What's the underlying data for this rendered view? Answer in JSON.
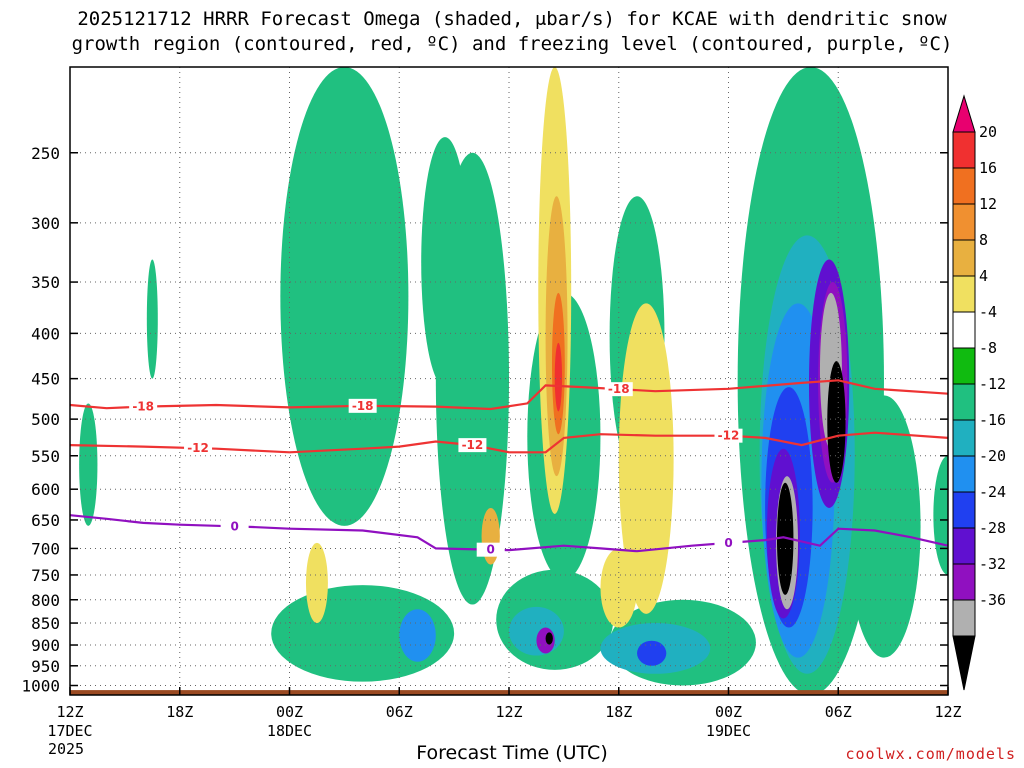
{
  "chart_data": {
    "type": "contour-heatmap",
    "title_line1": "2025121712 HRRR Forecast Omega (shaded, μbar/s) for KCAE with dendritic snow",
    "title_line2": "growth region (contoured, red, ºC) and freezing level (contoured, purple, ºC)",
    "xlabel": "Forecast Time (UTC)",
    "ylabel": "",
    "source": "coolwx.com/models",
    "x_ticks": [
      {
        "h": 0,
        "label": "12Z",
        "sub1": "17DEC",
        "sub2": "2025"
      },
      {
        "h": 6,
        "label": "18Z",
        "sub1": "",
        "sub2": ""
      },
      {
        "h": 12,
        "label": "00Z",
        "sub1": "18DEC",
        "sub2": ""
      },
      {
        "h": 18,
        "label": "06Z",
        "sub1": "",
        "sub2": ""
      },
      {
        "h": 24,
        "label": "12Z",
        "sub1": "",
        "sub2": ""
      },
      {
        "h": 30,
        "label": "18Z",
        "sub1": "",
        "sub2": ""
      },
      {
        "h": 36,
        "label": "00Z",
        "sub1": "19DEC",
        "sub2": ""
      },
      {
        "h": 42,
        "label": "06Z",
        "sub1": "",
        "sub2": ""
      },
      {
        "h": 48,
        "label": "12Z",
        "sub1": "",
        "sub2": ""
      }
    ],
    "x_range_hours": [
      0,
      48
    ],
    "y_range_hPa": [
      1025,
      200
    ],
    "y_ticks": [
      250,
      300,
      350,
      400,
      450,
      500,
      550,
      600,
      650,
      700,
      750,
      800,
      850,
      900,
      950,
      1000
    ],
    "colorbar": {
      "labels": [
        "20",
        "16",
        "12",
        "8",
        "4",
        "-4",
        "-8",
        "-12",
        "-16",
        "-20",
        "-24",
        "-28",
        "-32",
        "-36"
      ],
      "colors": [
        "#e8006f",
        "#f03030",
        "#f07020",
        "#f09030",
        "#e8b040",
        "#f0e060",
        "#ffffff",
        "#10bb10",
        "#20c080",
        "#20b0c0",
        "#2090f0",
        "#2040f0",
        "#6010d0",
        "#9010c0",
        "#b0b0b0",
        "#000000"
      ]
    },
    "dgz_contours": [
      {
        "label": "-18",
        "color": "#ee3333",
        "points": [
          [
            0,
            482
          ],
          [
            2,
            486
          ],
          [
            4,
            484
          ],
          [
            8,
            482
          ],
          [
            12,
            485
          ],
          [
            16,
            483
          ],
          [
            20,
            484
          ],
          [
            23,
            487
          ],
          [
            25,
            480
          ],
          [
            26,
            458
          ],
          [
            28,
            460
          ],
          [
            32,
            465
          ],
          [
            36,
            462
          ],
          [
            40,
            455
          ],
          [
            42,
            452
          ],
          [
            44,
            462
          ],
          [
            48,
            468
          ]
        ]
      },
      {
        "label": "-12",
        "color": "#ee3333",
        "points": [
          [
            0,
            535
          ],
          [
            4,
            537
          ],
          [
            8,
            540
          ],
          [
            12,
            545
          ],
          [
            16,
            540
          ],
          [
            18,
            537
          ],
          [
            20,
            530
          ],
          [
            22,
            535
          ],
          [
            24,
            545
          ],
          [
            26,
            545
          ],
          [
            27,
            525
          ],
          [
            29,
            520
          ],
          [
            32,
            522
          ],
          [
            36,
            522
          ],
          [
            38,
            525
          ],
          [
            40,
            535
          ],
          [
            42,
            522
          ],
          [
            44,
            518
          ],
          [
            48,
            525
          ]
        ]
      }
    ],
    "freezing_level": {
      "label": "0",
      "color": "#9010c0",
      "points": [
        [
          0,
          642
        ],
        [
          2,
          648
        ],
        [
          4,
          655
        ],
        [
          6,
          658
        ],
        [
          8,
          660
        ],
        [
          10,
          662
        ],
        [
          12,
          665
        ],
        [
          16,
          668
        ],
        [
          19,
          680
        ],
        [
          20,
          700
        ],
        [
          24,
          703
        ],
        [
          27,
          695
        ],
        [
          29,
          700
        ],
        [
          31,
          705
        ],
        [
          34,
          695
        ],
        [
          36,
          690
        ],
        [
          38,
          685
        ],
        [
          39,
          680
        ],
        [
          41,
          695
        ],
        [
          42,
          665
        ],
        [
          44,
          668
        ],
        [
          46,
          680
        ],
        [
          48,
          695
        ]
      ]
    },
    "omega_features": [
      {
        "cat": "-8",
        "h": 4.5,
        "p": 390,
        "rh": 0.3,
        "rp": 60
      },
      {
        "cat": "-8",
        "h": 1,
        "p": 570,
        "rh": 0.5,
        "rp": 90
      },
      {
        "cat": "-8",
        "h": 15,
        "p": 400,
        "rh": 3.5,
        "rp": 260
      },
      {
        "cat": "-8",
        "h": 20.5,
        "p": 350,
        "rh": 1.3,
        "rp": 110
      },
      {
        "cat": "-8",
        "h": 22,
        "p": 530,
        "rh": 2,
        "rp": 280
      },
      {
        "cat": "-8",
        "h": 27,
        "p": 560,
        "rh": 2,
        "rp": 200
      },
      {
        "cat": "-8",
        "h": 31,
        "p": 430,
        "rh": 1.5,
        "rp": 150
      },
      {
        "cat": "-8",
        "h": 16,
        "p": 880,
        "rh": 5,
        "rp": 110
      },
      {
        "cat": "-8",
        "h": 26.5,
        "p": 850,
        "rh": 3.2,
        "rp": 110
      },
      {
        "cat": "-8",
        "h": 33.5,
        "p": 900,
        "rh": 4,
        "rp": 100
      },
      {
        "cat": "-8",
        "h": 40.5,
        "p": 620,
        "rh": 4,
        "rp": 420
      },
      {
        "cat": "-8",
        "h": 44.5,
        "p": 700,
        "rh": 2,
        "rp": 230
      },
      {
        "cat": "-8",
        "h": 48,
        "p": 650,
        "rh": 0.8,
        "rp": 100
      },
      {
        "cat": "-12",
        "h": 40.3,
        "p": 640,
        "rh": 2.6,
        "rp": 330
      },
      {
        "cat": "-12",
        "h": 32,
        "p": 910,
        "rh": 3,
        "rp": 60
      },
      {
        "cat": "-12",
        "h": 25.5,
        "p": 870,
        "rh": 1.5,
        "rp": 55
      },
      {
        "cat": "-16",
        "h": 39.8,
        "p": 650,
        "rh": 2,
        "rp": 280
      },
      {
        "cat": "-16",
        "h": 19,
        "p": 880,
        "rh": 1,
        "rp": 60
      },
      {
        "cat": "-20",
        "h": 39.3,
        "p": 660,
        "rh": 1.3,
        "rp": 200
      },
      {
        "cat": "-20",
        "h": 31.8,
        "p": 920,
        "rh": 0.8,
        "rp": 30
      },
      {
        "cat": "-24",
        "h": 39,
        "p": 690,
        "rh": 0.9,
        "rp": 150
      },
      {
        "cat": "-24",
        "h": 41.5,
        "p": 480,
        "rh": 1.1,
        "rp": 150
      },
      {
        "cat": "-28",
        "h": 41.7,
        "p": 470,
        "rh": 0.8,
        "rp": 120
      },
      {
        "cat": "-28",
        "h": 26,
        "p": 890,
        "rh": 0.5,
        "rp": 30
      },
      {
        "cat": "-32",
        "h": 39.2,
        "p": 700,
        "rh": 0.6,
        "rp": 120
      },
      {
        "cat": "-32",
        "h": 41.6,
        "p": 450,
        "rh": 0.6,
        "rp": 90
      },
      {
        "cat": "-36",
        "h": 39.1,
        "p": 690,
        "rh": 0.45,
        "rp": 100
      },
      {
        "cat": "-36",
        "h": 41.9,
        "p": 510,
        "rh": 0.5,
        "rp": 80
      },
      {
        "cat": "-36",
        "h": 26.2,
        "p": 885,
        "rh": 0.2,
        "rp": 14
      },
      {
        "cat": "4",
        "h": 26.5,
        "p": 420,
        "rh": 0.9,
        "rp": 220
      },
      {
        "cat": "4",
        "h": 31.5,
        "p": 600,
        "rh": 1.5,
        "rp": 230
      },
      {
        "cat": "4",
        "h": 13.5,
        "p": 770,
        "rh": 0.6,
        "rp": 80
      },
      {
        "cat": "4",
        "h": 30,
        "p": 780,
        "rh": 1,
        "rp": 80
      },
      {
        "cat": "8",
        "h": 26.6,
        "p": 430,
        "rh": 0.6,
        "rp": 150
      },
      {
        "cat": "8",
        "h": 23,
        "p": 680,
        "rh": 0.5,
        "rp": 50
      },
      {
        "cat": "16",
        "h": 26.7,
        "p": 440,
        "rh": 0.35,
        "rp": 80
      },
      {
        "cat": "20",
        "h": 26.7,
        "p": 450,
        "rh": 0.2,
        "rp": 40
      }
    ],
    "surface_color": "#9a4a22"
  }
}
